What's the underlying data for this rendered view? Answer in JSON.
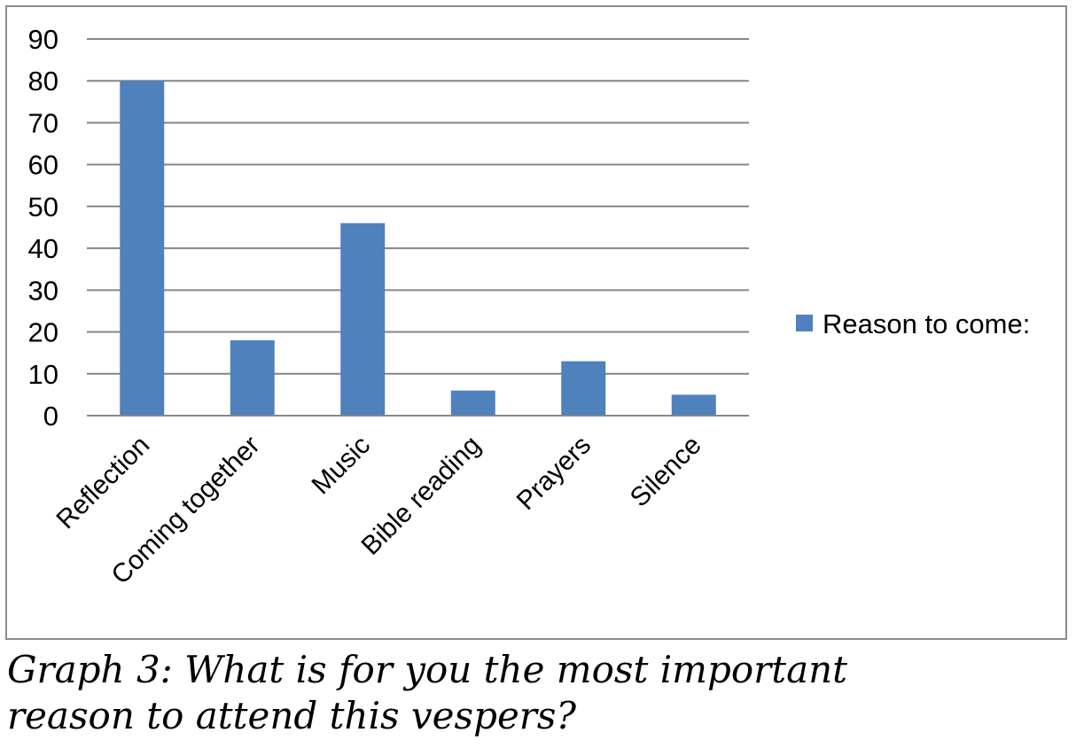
{
  "chart_data": {
    "type": "bar",
    "categories": [
      "Reflection",
      "Coming together",
      "Music",
      "Bible reading",
      "Prayers",
      "Silence"
    ],
    "series": [
      {
        "name": "Reason to come:",
        "values": [
          80,
          18,
          46,
          6,
          13,
          5
        ],
        "color": "#4f81bd"
      }
    ],
    "y_ticks": [
      "0",
      "10",
      "20",
      "30",
      "40",
      "50",
      "60",
      "70",
      "80",
      "90"
    ],
    "ylim": [
      0,
      90
    ],
    "grid": true,
    "legend_position": "right",
    "xlabel": "",
    "ylabel": ""
  },
  "caption": {
    "line1": "Graph 3: What is for you the most important",
    "line2": "reason to attend this vespers?"
  }
}
